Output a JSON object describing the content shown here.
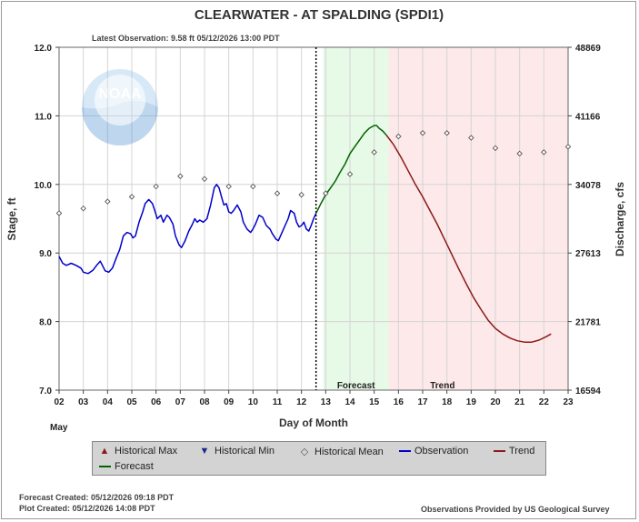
{
  "chart_data": {
    "type": "line",
    "title": "CLEARWATER - AT SPALDING  (SPDI1)",
    "subtitle": "Latest Observation: 9.58 ft 05/12/2026 13:00 PDT",
    "xlabel": "Day of Month",
    "x_sublabel": "May",
    "ylabel_left": "Stage, ft",
    "ylabel_right": "Discharge, cfs",
    "xlim": [
      2,
      23
    ],
    "ylim": [
      7.0,
      12.0
    ],
    "x_ticks": [
      "02",
      "03",
      "04",
      "05",
      "06",
      "07",
      "08",
      "09",
      "10",
      "11",
      "12",
      "13",
      "14",
      "15",
      "16",
      "17",
      "18",
      "19",
      "20",
      "21",
      "22",
      "23"
    ],
    "y_ticks_left": [
      "7.0",
      "8.0",
      "9.0",
      "10.0",
      "11.0",
      "12.0"
    ],
    "y_ticks_right": [
      "16594",
      "21781",
      "27613",
      "34078",
      "41166",
      "48869"
    ],
    "forecast_label": "Forecast",
    "trend_label": "Trend",
    "forecast_region": [
      12.9,
      15.6
    ],
    "trend_region": [
      15.6,
      23
    ],
    "now_line_x": 12.6,
    "colors": {
      "observation": "#0000cc",
      "forecast": "#006400",
      "trend": "#8b1a1a",
      "forecast_bg": "#e7f9e7",
      "trend_bg": "#fde9ea",
      "mean": "#555555"
    },
    "series": [
      {
        "name": "Observation",
        "x": [
          2.0,
          2.15,
          2.3,
          2.5,
          2.7,
          2.9,
          3.0,
          3.2,
          3.4,
          3.55,
          3.7,
          3.9,
          4.05,
          4.2,
          4.35,
          4.5,
          4.65,
          4.8,
          4.95,
          5.05,
          5.15,
          5.3,
          5.45,
          5.55,
          5.7,
          5.85,
          5.95,
          6.05,
          6.2,
          6.3,
          6.45,
          6.55,
          6.7,
          6.8,
          6.95,
          7.05,
          7.2,
          7.35,
          7.5,
          7.6,
          7.7,
          7.8,
          7.95,
          8.1,
          8.25,
          8.4,
          8.5,
          8.6,
          8.7,
          8.8,
          8.9,
          9.0,
          9.1,
          9.2,
          9.35,
          9.5,
          9.6,
          9.75,
          9.9,
          10.0,
          10.1,
          10.25,
          10.4,
          10.55,
          10.7,
          10.8,
          10.95,
          11.05,
          11.2,
          11.35,
          11.45,
          11.55,
          11.7,
          11.8,
          11.9,
          12.0,
          12.1,
          12.2,
          12.3,
          12.4,
          12.5,
          12.6
        ],
        "values": [
          8.95,
          8.85,
          8.82,
          8.85,
          8.82,
          8.78,
          8.72,
          8.7,
          8.75,
          8.82,
          8.88,
          8.74,
          8.72,
          8.78,
          8.92,
          9.05,
          9.25,
          9.3,
          9.28,
          9.22,
          9.25,
          9.45,
          9.6,
          9.72,
          9.78,
          9.72,
          9.62,
          9.5,
          9.55,
          9.45,
          9.55,
          9.52,
          9.42,
          9.25,
          9.12,
          9.08,
          9.18,
          9.32,
          9.42,
          9.5,
          9.45,
          9.48,
          9.45,
          9.5,
          9.7,
          9.95,
          10.0,
          9.95,
          9.82,
          9.7,
          9.72,
          9.6,
          9.58,
          9.62,
          9.7,
          9.6,
          9.45,
          9.35,
          9.3,
          9.35,
          9.42,
          9.55,
          9.52,
          9.4,
          9.35,
          9.28,
          9.2,
          9.18,
          9.3,
          9.42,
          9.5,
          9.62,
          9.58,
          9.45,
          9.38,
          9.4,
          9.45,
          9.35,
          9.32,
          9.4,
          9.5,
          9.58
        ]
      },
      {
        "name": "Forecast",
        "x": [
          12.6,
          12.8,
          13.0,
          13.2,
          13.4,
          13.6,
          13.8,
          14.0,
          14.2,
          14.4,
          14.6,
          14.8,
          15.0,
          15.1,
          15.2,
          15.35,
          15.5
        ],
        "values": [
          9.58,
          9.72,
          9.85,
          9.95,
          10.05,
          10.18,
          10.3,
          10.45,
          10.55,
          10.65,
          10.75,
          10.82,
          10.86,
          10.86,
          10.82,
          10.78,
          10.72
        ]
      },
      {
        "name": "Trend",
        "x": [
          15.5,
          15.8,
          16.1,
          16.4,
          16.7,
          17.0,
          17.3,
          17.6,
          17.9,
          18.2,
          18.5,
          18.8,
          19.1,
          19.4,
          19.7,
          20.0,
          20.3,
          20.6,
          20.9,
          21.2,
          21.5,
          21.8,
          22.1,
          22.3
        ],
        "values": [
          10.72,
          10.58,
          10.4,
          10.2,
          10.0,
          9.82,
          9.62,
          9.42,
          9.2,
          8.98,
          8.76,
          8.55,
          8.35,
          8.18,
          8.02,
          7.9,
          7.82,
          7.76,
          7.72,
          7.7,
          7.7,
          7.73,
          7.78,
          7.82
        ]
      },
      {
        "name": "Historical Mean",
        "x": [
          2,
          3,
          4,
          5,
          6,
          7,
          8,
          9,
          10,
          11,
          12,
          13,
          14,
          15,
          16,
          17,
          18,
          19,
          20,
          21,
          22,
          23
        ],
        "values": [
          9.58,
          9.65,
          9.75,
          9.82,
          9.97,
          10.12,
          10.08,
          9.97,
          9.97,
          9.87,
          9.85,
          9.87,
          10.15,
          10.47,
          10.7,
          10.75,
          10.75,
          10.68,
          10.53,
          10.45,
          10.47,
          10.55
        ]
      }
    ],
    "legend": [
      "Historical Max",
      "Historical Min",
      "Historical Mean",
      "Observation",
      "Trend",
      "Forecast"
    ],
    "footer": {
      "forecast_created": "Forecast Created: 05/12/2026 09:18 PDT",
      "plot_created": "Plot Created: 05/12/2026 14:08 PDT",
      "provider": "Observations Provided by US Geological Survey"
    },
    "logo_text": "NOAA"
  }
}
